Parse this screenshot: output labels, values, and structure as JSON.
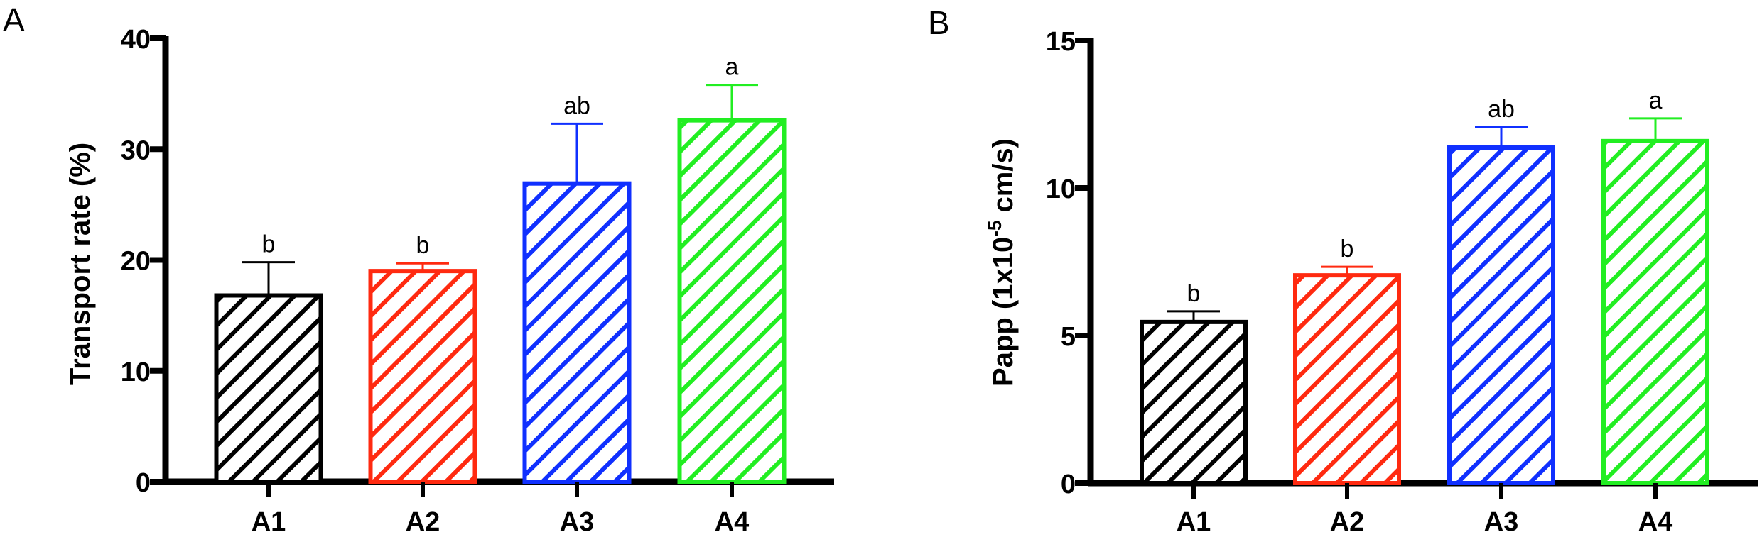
{
  "chart_data": [
    {
      "panel": "A",
      "type": "bar",
      "title": "",
      "xlabel": "",
      "ylabel": "Transport rate (%)",
      "ylim": [
        0,
        40
      ],
      "yticks": [
        0,
        10,
        20,
        30,
        40
      ],
      "grid": false,
      "legend": "none",
      "categories": [
        "A1",
        "A2",
        "A3",
        "A4"
      ],
      "values": [
        16.8,
        19.0,
        26.9,
        32.6
      ],
      "error_upper": [
        19.8,
        19.7,
        32.3,
        35.8
      ],
      "significance": [
        "b",
        "b",
        "ab",
        "a"
      ],
      "colors": [
        "#000000",
        "#ff2a10",
        "#1030ff",
        "#22ee22"
      ],
      "fill": "diagonal-hatch"
    },
    {
      "panel": "B",
      "type": "bar",
      "title": "",
      "xlabel": "",
      "ylabel": "Papp (1x10",
      "ylabel_superscript": "-5",
      "ylabel_suffix": " cm/s)",
      "ylim": [
        0,
        15
      ],
      "yticks": [
        0,
        5,
        10,
        15
      ],
      "grid": false,
      "legend": "none",
      "categories": [
        "A1",
        "A2",
        "A3",
        "A4"
      ],
      "values": [
        5.46,
        7.04,
        11.37,
        11.59
      ],
      "error_upper": [
        5.82,
        7.33,
        12.07,
        12.36
      ],
      "significance": [
        "b",
        "b",
        "ab",
        "a"
      ],
      "colors": [
        "#000000",
        "#ff2a10",
        "#1030ff",
        "#22ee22"
      ],
      "fill": "diagonal-hatch"
    }
  ]
}
